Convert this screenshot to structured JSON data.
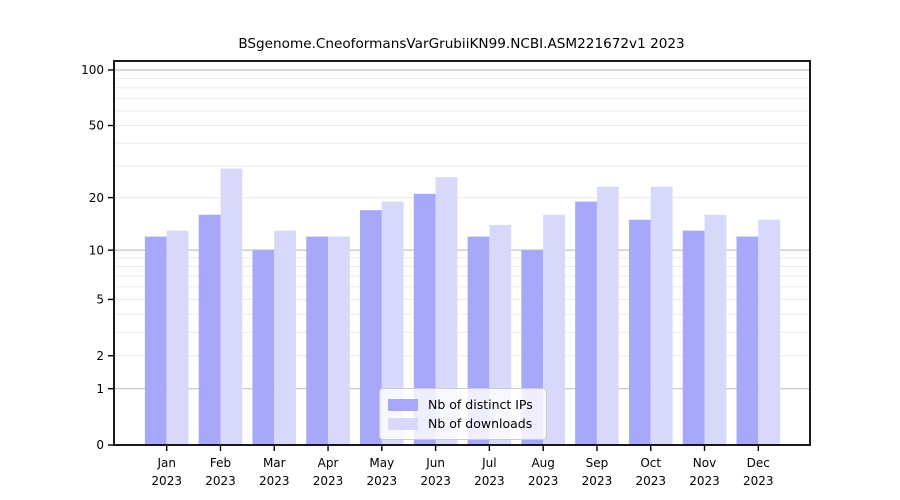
{
  "chart_data": {
    "type": "bar",
    "title": "BSgenome.CneoformansVarGrubiiKN99.NCBI.ASM221672v1 2023",
    "categories": [
      "Jan",
      "Feb",
      "Mar",
      "Apr",
      "May",
      "Jun",
      "Jul",
      "Aug",
      "Sep",
      "Oct",
      "Nov",
      "Dec"
    ],
    "year_label": "2023",
    "series": [
      {
        "name": "Nb of distinct IPs",
        "color": "#a8a8fa",
        "values": [
          12,
          16,
          10,
          12,
          17,
          21,
          12,
          10,
          19,
          15,
          13,
          12
        ]
      },
      {
        "name": "Nb of downloads",
        "color": "#d8d8fa",
        "values": [
          13,
          29,
          13,
          12,
          19,
          26,
          14,
          16,
          23,
          23,
          16,
          15
        ]
      }
    ],
    "yscale": "log1p",
    "ylim": [
      0,
      100
    ],
    "y_tick_labels": [
      "0",
      "1",
      "2",
      "5",
      "10",
      "20",
      "50",
      "100"
    ],
    "y_tick_values": [
      0,
      1,
      2,
      5,
      10,
      20,
      50,
      100
    ],
    "y_major_grid": [
      1,
      10,
      100
    ],
    "y_minor_grid": [
      2,
      3,
      4,
      5,
      6,
      7,
      8,
      9,
      20,
      30,
      40,
      50,
      60,
      70,
      80,
      90
    ],
    "grid": true,
    "legend_position": "bottom-center",
    "colors": {
      "axis": "#000000",
      "major_grid": "#c4c4c4",
      "minor_grid": "#ebebeb",
      "background": "#ffffff"
    }
  }
}
